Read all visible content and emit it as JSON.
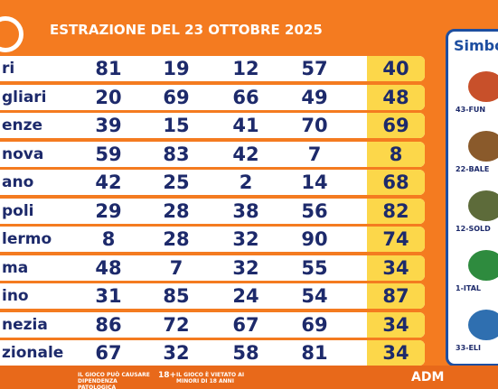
{
  "header": {
    "title": "ESTRAZIONE DEL 23 OTTOBRE 2025"
  },
  "table": {
    "rows": [
      {
        "city": "ri",
        "numbers": [
          81,
          19,
          12,
          57,
          40
        ]
      },
      {
        "city": "gliari",
        "numbers": [
          20,
          69,
          66,
          49,
          48
        ]
      },
      {
        "city": "enze",
        "numbers": [
          39,
          15,
          41,
          70,
          69
        ]
      },
      {
        "city": "nova",
        "numbers": [
          59,
          83,
          42,
          7,
          8
        ]
      },
      {
        "city": "ano",
        "numbers": [
          42,
          25,
          2,
          14,
          68
        ]
      },
      {
        "city": "poli",
        "numbers": [
          29,
          28,
          38,
          56,
          82
        ]
      },
      {
        "city": "lermo",
        "numbers": [
          8,
          28,
          32,
          90,
          74
        ]
      },
      {
        "city": "ma",
        "numbers": [
          48,
          7,
          32,
          55,
          34
        ]
      },
      {
        "city": "ino",
        "numbers": [
          31,
          85,
          24,
          54,
          87
        ]
      },
      {
        "city": "nezia",
        "numbers": [
          86,
          72,
          67,
          69,
          34
        ]
      },
      {
        "city": "zionale",
        "numbers": [
          67,
          32,
          58,
          81,
          34
        ]
      }
    ]
  },
  "side_panel": {
    "title": "Simbo",
    "items": [
      "43-FUN",
      "22-BALE",
      "12-SOLD",
      "1-ITAL",
      "33-ELI"
    ]
  },
  "footer": {
    "warning": "IL GIOCO PUÒ CAUSARE DIPENDENZA PATOLOGICA",
    "age": "18+",
    "minors": "IL GIOCO È VIETATO AI MINORI DI 18 ANNI",
    "brand": "ADM"
  }
}
